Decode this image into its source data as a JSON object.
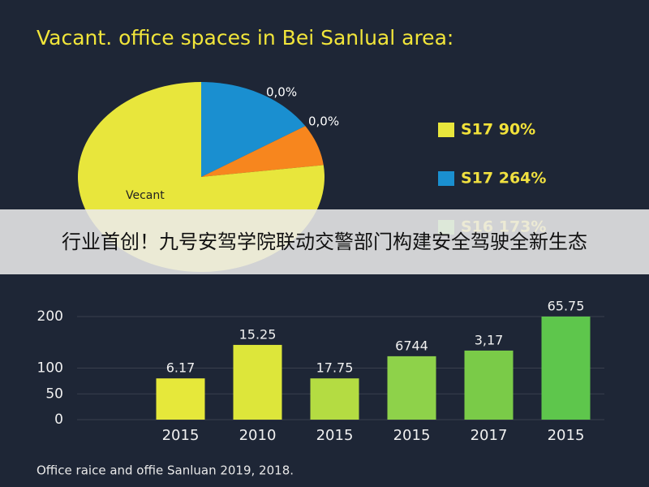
{
  "chart_data": [
    {
      "type": "pie",
      "title": "Vacant. office spaces in Bei Sanlual area:",
      "categories": [
        "Vecant",
        null,
        null
      ],
      "values": [
        77,
        16,
        7
      ],
      "colors": [
        "#e8e63c",
        "#1a8fd0",
        "#f7861e"
      ],
      "annotations": [
        "0,0%",
        "0,0%"
      ],
      "legend": [
        {
          "name": "S17 90%",
          "color": "#e8e63c"
        },
        {
          "name": "S17 264%",
          "color": "#1a8fd0"
        },
        {
          "name": "S16 173%",
          "color": "#7fd05a"
        }
      ]
    },
    {
      "type": "bar",
      "categories": [
        "2015",
        "2010",
        "2015",
        "2015",
        "2017",
        "2015"
      ],
      "values": [
        80,
        145,
        80,
        123,
        134,
        200
      ],
      "colors": [
        "#e6e83a",
        "#dde63a",
        "#b4dc42",
        "#8ed24a",
        "#7acb48",
        "#5ec64c"
      ],
      "annotations": [
        "6.17",
        "15.25",
        "17.75",
        "6744",
        "3,17",
        "65.75"
      ],
      "ylim": [
        0,
        200
      ],
      "yticks": [
        0,
        50,
        100,
        200
      ],
      "grid": true,
      "caption": "Office raice and offie Sanluan 2019, 2018."
    }
  ],
  "banner": "行业首创！九号安驾学院联动交警部门构建安全驾驶全新生态"
}
